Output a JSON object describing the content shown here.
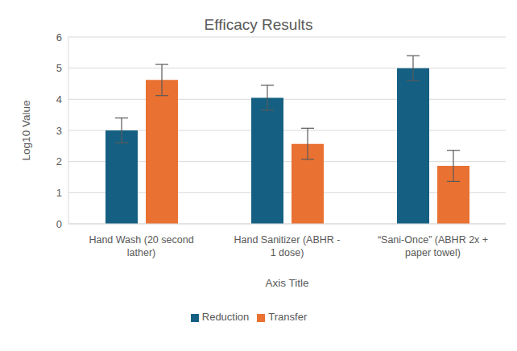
{
  "chart_data": {
    "type": "bar",
    "title": "Efficacy Results",
    "x_label": "Axis Title",
    "y_label": "Log10 Value",
    "categories": [
      "Hand Wash (20 second lather)",
      "Hand Sanitizer (ABHR - 1 dose)",
      "“Sani-Once” (ABHR 2x + paper towel)"
    ],
    "series": [
      {
        "name": "Reduction",
        "color": "#156082",
        "values": [
          3.0,
          4.05,
          5.0
        ],
        "errors": [
          0.4,
          0.4,
          0.4
        ]
      },
      {
        "name": "Transfer",
        "color": "#e97132",
        "values": [
          4.62,
          2.57,
          1.86
        ],
        "errors": [
          0.5,
          0.5,
          0.5
        ]
      }
    ],
    "ylim": [
      0,
      6
    ],
    "yticks": [
      0,
      1,
      2,
      3,
      4,
      5,
      6
    ],
    "grid": true,
    "legend": "bottom"
  }
}
